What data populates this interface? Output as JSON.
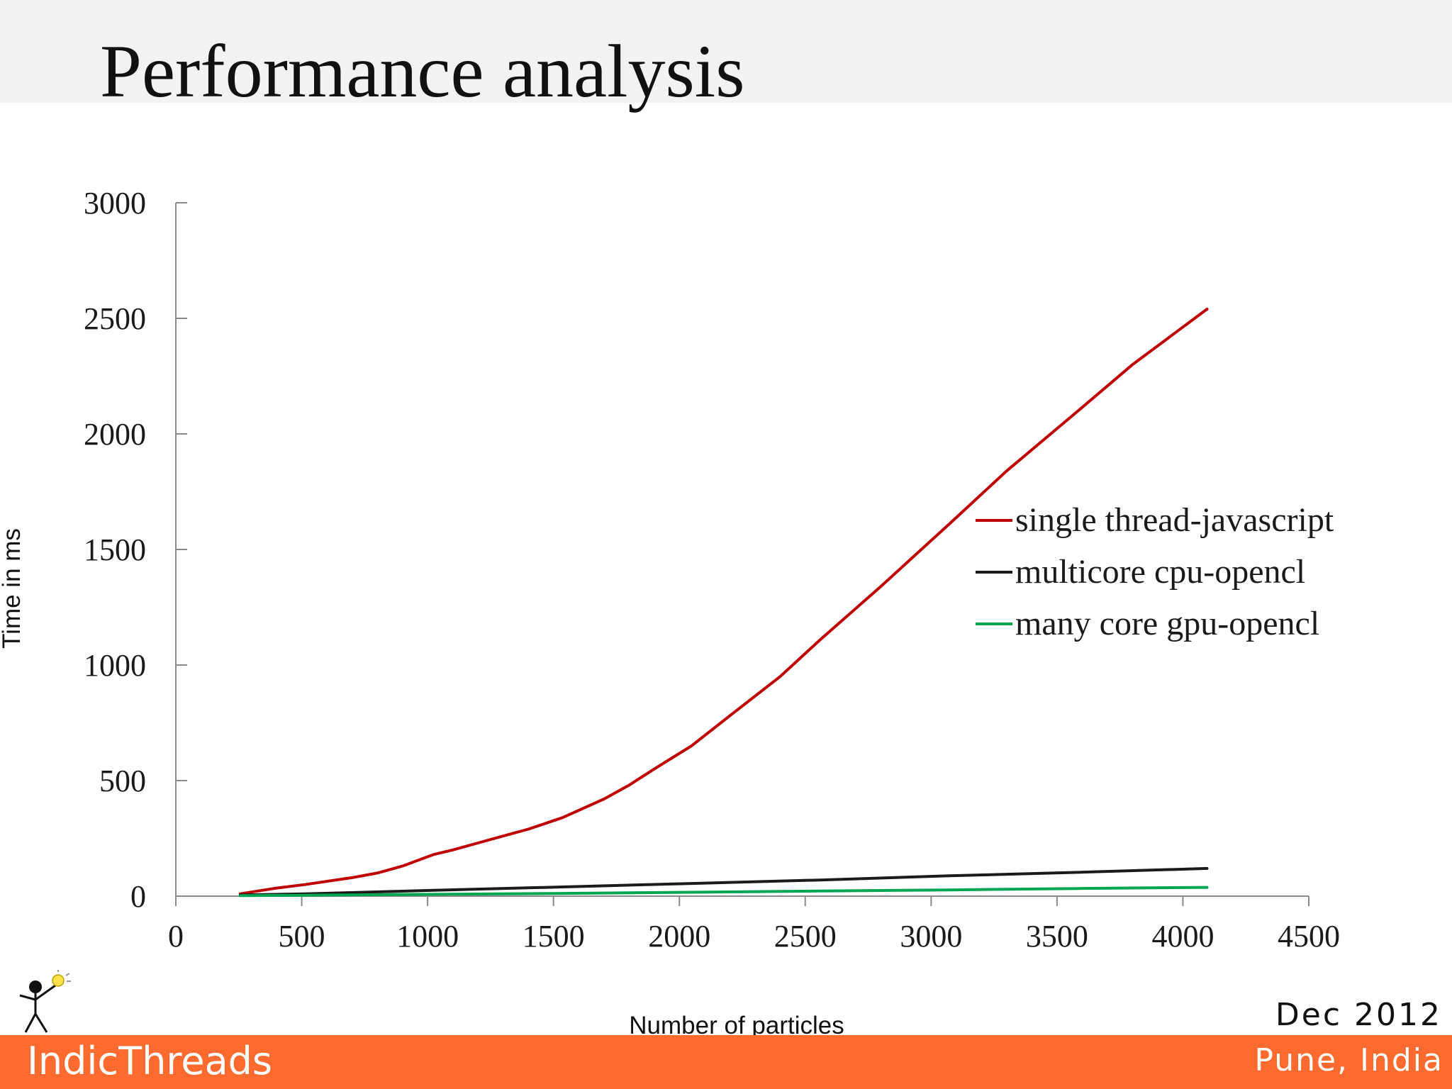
{
  "slide": {
    "title": "Performance analysis"
  },
  "footer": {
    "brand": "IndicThreads",
    "date": "Dec 2012",
    "place": "Pune, India",
    "band_color": "#ff6a2f"
  },
  "icons": {
    "mascot": "stick-figure-lightbulb-icon"
  },
  "chart_data": {
    "type": "line",
    "title": "",
    "xlabel": "Number of particles",
    "ylabel": "Time in ms",
    "xlim": [
      0,
      4500
    ],
    "ylim": [
      0,
      3000
    ],
    "x_ticks": [
      0,
      500,
      1000,
      1500,
      2000,
      2500,
      3000,
      3500,
      4000,
      4500
    ],
    "y_ticks": [
      0,
      500,
      1000,
      1500,
      2000,
      2500,
      3000
    ],
    "grid": false,
    "legend_position": "right",
    "series": [
      {
        "name": "single thread-javascript",
        "color": "#c00000",
        "x": [
          256,
          400,
          512,
          700,
          800,
          900,
          1024,
          1100,
          1200,
          1300,
          1400,
          1536,
          1700,
          1800,
          1900,
          2048,
          2200,
          2400,
          2560,
          2800,
          3072,
          3300,
          3584,
          3800,
          4096
        ],
        "y": [
          10,
          35,
          50,
          80,
          100,
          130,
          180,
          200,
          230,
          260,
          290,
          340,
          420,
          480,
          550,
          650,
          780,
          950,
          1110,
          1340,
          1610,
          1840,
          2100,
          2300,
          2540
        ]
      },
      {
        "name": "multicore cpu-opencl",
        "color": "#1a1a1a",
        "x": [
          256,
          512,
          1024,
          1536,
          2048,
          2560,
          3072,
          3584,
          4096
        ],
        "y": [
          5,
          10,
          25,
          40,
          55,
          70,
          88,
          103,
          120
        ]
      },
      {
        "name": "many core gpu-opencl",
        "color": "#00a651",
        "x": [
          256,
          512,
          1024,
          1536,
          2048,
          2560,
          3072,
          3584,
          4096
        ],
        "y": [
          2,
          4,
          8,
          12,
          17,
          22,
          27,
          33,
          38
        ]
      }
    ]
  }
}
